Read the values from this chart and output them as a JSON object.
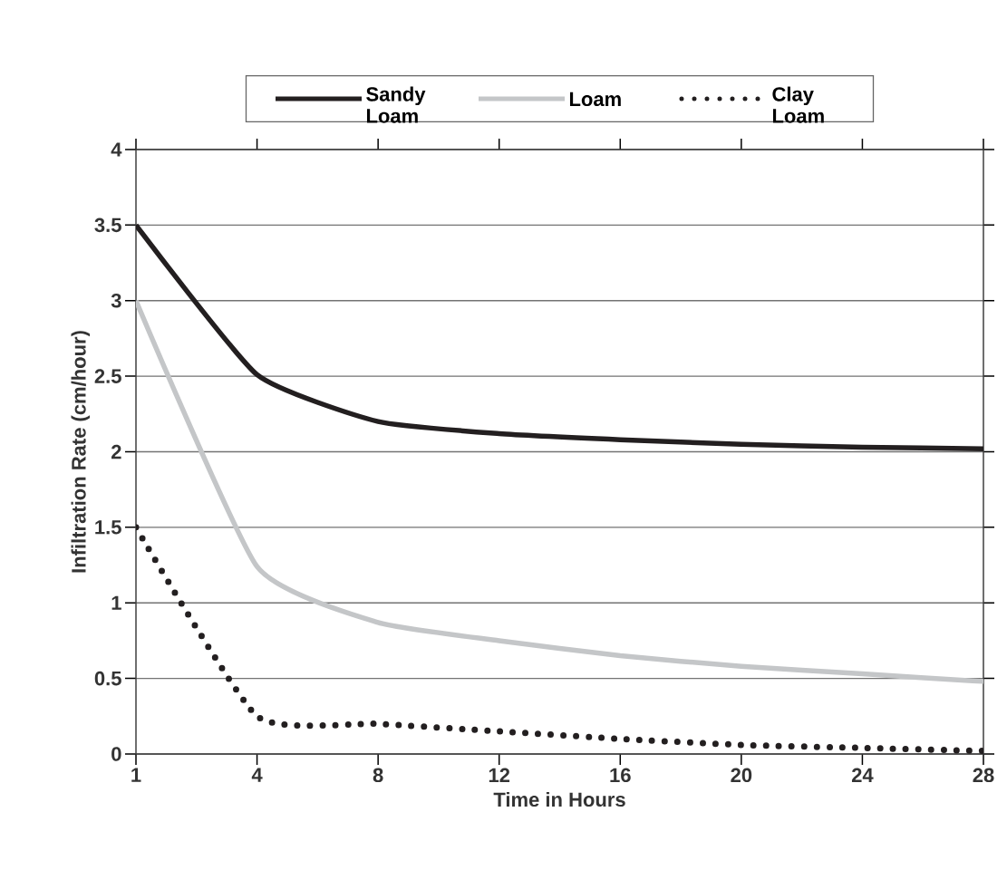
{
  "chart_data": {
    "type": "line",
    "xlabel": "Time in Hours",
    "ylabel": "Infiltration Rate (cm/hour)",
    "categories": [
      "1",
      "4",
      "8",
      "12",
      "16",
      "20",
      "24",
      "28"
    ],
    "series": [
      {
        "name": "Sandy Loam",
        "color": "#231f20",
        "line_style": "solid",
        "values": [
          3.5,
          2.51,
          2.2,
          2.12,
          2.08,
          2.05,
          2.03,
          2.02
        ]
      },
      {
        "name": "Loam",
        "color": "#c4c6c8",
        "line_style": "solid",
        "values": [
          3.0,
          1.24,
          0.87,
          0.75,
          0.65,
          0.58,
          0.53,
          0.48
        ]
      },
      {
        "name": "Clay Loam",
        "color": "#231f20",
        "line_style": "dotted",
        "values": [
          1.5,
          0.25,
          0.2,
          0.15,
          0.1,
          0.06,
          0.04,
          0.02
        ]
      }
    ],
    "ylim": [
      0,
      4
    ],
    "yticks": [
      0,
      0.5,
      1,
      1.5,
      2,
      2.5,
      3,
      3.5,
      4
    ],
    "grid": "y",
    "legend": "top",
    "marker": "none"
  }
}
